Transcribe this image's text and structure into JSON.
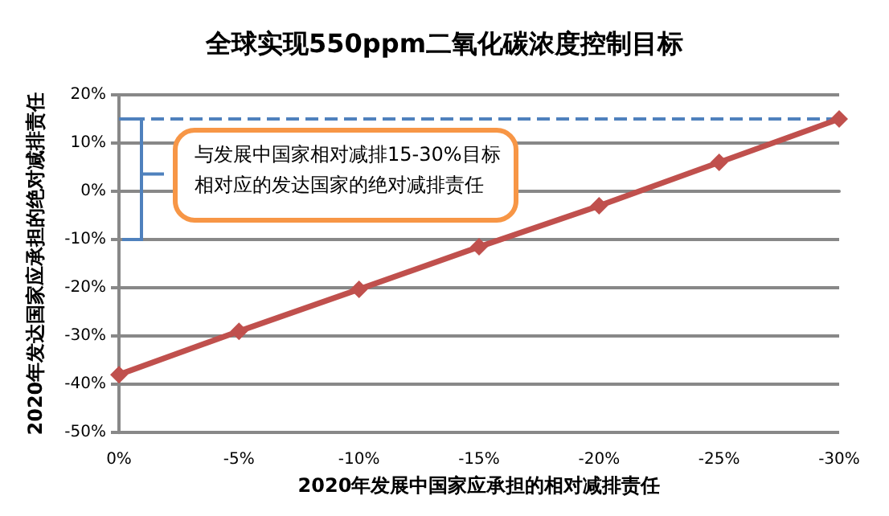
{
  "chart_data": {
    "type": "line",
    "title": "全球实现550ppm二氧化碳浓度控制目标",
    "xlabel": "2020年发展中国家应承担的相对减排责任",
    "ylabel": "2020年发达国家应承担的绝对减排责任",
    "x": [
      0,
      -5,
      -10,
      -15,
      -20,
      -25,
      -30
    ],
    "series": [
      {
        "color": "#c0504d",
        "values": [
          -38,
          -29,
          -20.3,
          -11.5,
          -3,
          6,
          15
        ]
      }
    ],
    "xlim": [
      0,
      -30
    ],
    "xticks": [
      {
        "value": 0,
        "label": "0%"
      },
      {
        "value": -5,
        "label": "-5%"
      },
      {
        "value": -10,
        "label": "-10%"
      },
      {
        "value": -15,
        "label": "-15%"
      },
      {
        "value": -20,
        "label": "-20%"
      },
      {
        "value": -25,
        "label": "-25%"
      },
      {
        "value": -30,
        "label": "-30%"
      }
    ],
    "ylim": [
      -50,
      20
    ],
    "yticks": [
      {
        "value": -50,
        "label": "-50%"
      },
      {
        "value": -40,
        "label": "-40%"
      },
      {
        "value": -30,
        "label": "-30%"
      },
      {
        "value": -20,
        "label": "-20%"
      },
      {
        "value": -10,
        "label": "-10%"
      },
      {
        "value": 0,
        "label": "0%"
      },
      {
        "value": 10,
        "label": "10%"
      },
      {
        "value": 20,
        "label": "20%"
      }
    ],
    "ref_lines": [
      {
        "axis": "y",
        "value": 15,
        "color": "#4f81bd",
        "line_style": "dashed"
      }
    ],
    "annotations": [
      "与发展中国家相对减排15-30%目标",
      "相对应的发达国家的绝对减排责任"
    ],
    "grid": "y",
    "marker": "diamond",
    "line_style": "solid"
  }
}
